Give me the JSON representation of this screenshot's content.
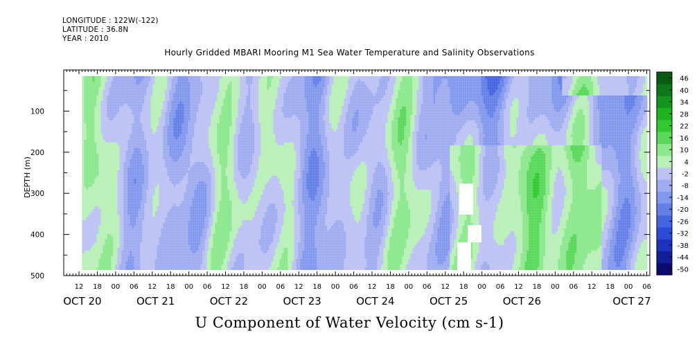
{
  "header": {
    "longitude": "LONGITUDE : 122W(-122)",
    "latitude": "LATITUDE : 36.8N",
    "year": "YEAR : 2010"
  },
  "chart_data": {
    "type": "heatmap",
    "title": "Hourly Gridded MBARI Mooring M1 Sea Water Temperature and Salinity Observations",
    "xlabel": "U Component of Water Velocity (cm s-1)",
    "ylabel": "DEPTH (m)",
    "x_range_hours_ticks": [
      "12",
      "18",
      "00",
      "06",
      "12",
      "18",
      "00",
      "06",
      "12",
      "18",
      "00",
      "06",
      "12",
      "18",
      "00",
      "06",
      "12",
      "18",
      "00",
      "06",
      "12",
      "18",
      "00",
      "06",
      "12",
      "18",
      "00",
      "06",
      "12",
      "18",
      "00",
      "06"
    ],
    "x_date_labels": [
      "OCT 20",
      "OCT 21",
      "OCT 22",
      "OCT 23",
      "OCT 24",
      "OCT 25",
      "OCT 26",
      "OCT 27"
    ],
    "x_range": [
      "2010-10-19 07:00",
      "2010-10-27 07:00"
    ],
    "data_extent_x": [
      "2010-10-19 13:00",
      "2010-10-27 06:00"
    ],
    "ylim": [
      500,
      0
    ],
    "y_ticks": [
      100,
      200,
      300,
      400,
      500
    ],
    "data_extent_depth": [
      15,
      485
    ],
    "colorbar": {
      "levels": [
        -50,
        -44,
        -38,
        -32,
        -26,
        -20,
        -14,
        -8,
        -2,
        4,
        10,
        16,
        22,
        28,
        34,
        40,
        46
      ],
      "labels": [
        "46",
        "40",
        "34",
        "28",
        "22",
        "16",
        "10",
        "4",
        "-2",
        "-8",
        "-14",
        "-20",
        "-26",
        "-32",
        "-38",
        "-44",
        "-50"
      ],
      "colors": [
        "#0b0b6e",
        "#141e96",
        "#1e32be",
        "#2d4bd6",
        "#4464e0",
        "#6480e8",
        "#8298ec",
        "#a0acf0",
        "#bcc2f4",
        "#b8f0b8",
        "#8ce88c",
        "#5ad85a",
        "#32c832",
        "#1eb41e",
        "#14961e",
        "#0c781a",
        "#0a5a14"
      ]
    }
  }
}
